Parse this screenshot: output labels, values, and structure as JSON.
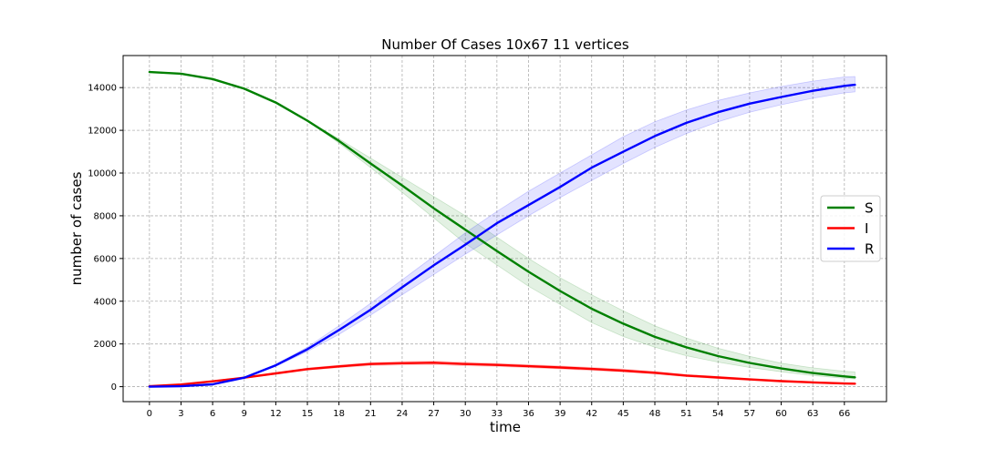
{
  "chart_data": {
    "type": "line",
    "title": "Number Of Cases 10x67 11 vertices",
    "xlabel": "time",
    "ylabel": "number of cases",
    "xlim": [
      -2.5,
      70
    ],
    "ylim": [
      -700,
      15500
    ],
    "xticks": [
      0,
      3,
      6,
      9,
      12,
      15,
      18,
      21,
      24,
      27,
      30,
      33,
      36,
      39,
      42,
      45,
      48,
      51,
      54,
      57,
      60,
      63,
      66
    ],
    "yticks": [
      0,
      2000,
      4000,
      6000,
      8000,
      10000,
      12000,
      14000
    ],
    "grid": true,
    "legend_position": "center-right",
    "x": [
      0,
      3,
      6,
      9,
      12,
      15,
      18,
      21,
      24,
      27,
      30,
      33,
      36,
      39,
      42,
      45,
      48,
      51,
      54,
      57,
      60,
      63,
      66,
      67
    ],
    "series": [
      {
        "name": "S",
        "color": "#008000",
        "band_color": "#008000",
        "values": [
          14730,
          14650,
          14400,
          13950,
          13300,
          12450,
          11500,
          10450,
          9420,
          8350,
          7350,
          6350,
          5380,
          4480,
          3650,
          2950,
          2330,
          1840,
          1430,
          1110,
          850,
          640,
          480,
          440
        ],
        "lower": [
          14730,
          14650,
          14400,
          13950,
          13300,
          12450,
          11400,
          10250,
          9100,
          7900,
          6700,
          5700,
          4700,
          3850,
          3000,
          2350,
          1850,
          1450,
          1150,
          900,
          700,
          520,
          390,
          360
        ],
        "upper": [
          14730,
          14650,
          14400,
          13950,
          13300,
          12450,
          11600,
          10700,
          9800,
          8900,
          8000,
          7000,
          6000,
          5100,
          4300,
          3550,
          2850,
          2280,
          1800,
          1420,
          1100,
          880,
          720,
          690
        ]
      },
      {
        "name": "I",
        "color": "#ff0000",
        "band_color": "#ff0000",
        "values": [
          20,
          100,
          250,
          420,
          620,
          820,
          950,
          1060,
          1100,
          1120,
          1060,
          1020,
          960,
          900,
          830,
          750,
          650,
          520,
          430,
          340,
          260,
          200,
          150,
          140
        ],
        "lower": [
          20,
          90,
          230,
          390,
          580,
          770,
          890,
          990,
          1020,
          1030,
          980,
          950,
          890,
          830,
          760,
          690,
          590,
          470,
          380,
          300,
          230,
          170,
          120,
          110
        ],
        "upper": [
          20,
          110,
          270,
          450,
          660,
          870,
          1010,
          1130,
          1180,
          1200,
          1140,
          1090,
          1030,
          970,
          900,
          820,
          710,
          570,
          480,
          380,
          300,
          230,
          180,
          170
        ]
      },
      {
        "name": "R",
        "color": "#0000ff",
        "band_color": "#0000ff",
        "values": [
          0,
          20,
          110,
          420,
          1000,
          1750,
          2650,
          3600,
          4650,
          5680,
          6650,
          7650,
          8500,
          9350,
          10250,
          11000,
          11730,
          12350,
          12850,
          13250,
          13560,
          13850,
          14080,
          14130
        ],
        "lower": [
          0,
          20,
          110,
          420,
          950,
          1650,
          2450,
          3350,
          4300,
          5250,
          6200,
          7100,
          8000,
          8850,
          9650,
          10450,
          11200,
          11850,
          12400,
          12850,
          13200,
          13500,
          13750,
          13800
        ],
        "upper": [
          0,
          20,
          110,
          420,
          1050,
          1850,
          2850,
          3900,
          5000,
          6100,
          7200,
          8200,
          9150,
          10000,
          10850,
          11700,
          12400,
          12950,
          13400,
          13750,
          14050,
          14300,
          14500,
          14520
        ]
      }
    ]
  }
}
